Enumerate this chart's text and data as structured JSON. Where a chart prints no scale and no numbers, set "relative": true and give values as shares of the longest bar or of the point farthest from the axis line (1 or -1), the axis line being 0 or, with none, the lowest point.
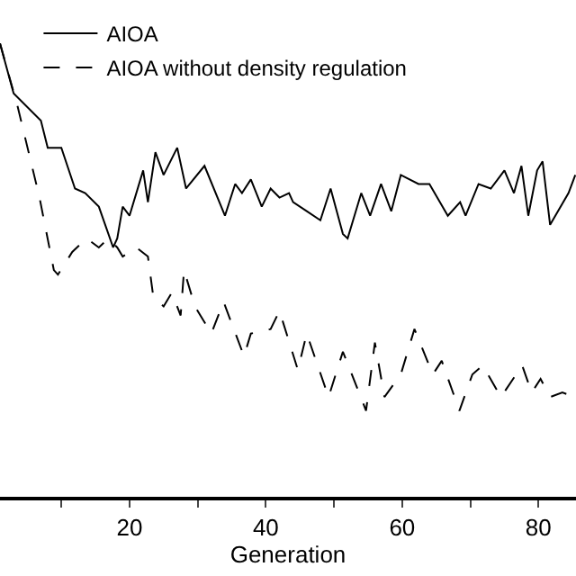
{
  "chart_data": {
    "type": "line",
    "xlabel": "Generation",
    "relative": true,
    "xlim": [
      1,
      85.5
    ],
    "xticks": [
      {
        "value": 10,
        "label": null
      },
      20,
      {
        "value": 30,
        "label": null
      },
      40,
      {
        "value": 50,
        "label": null
      },
      60,
      {
        "value": 70,
        "label": null
      },
      80
    ],
    "tick_labels": "x",
    "legend": "top left",
    "grid": false,
    "series": [
      {
        "name": "AIOA",
        "color": "#000000",
        "line_style": "solid",
        "x": [
          1,
          3,
          7,
          8,
          10,
          12,
          13.5,
          15.5,
          17.6,
          18.2,
          19,
          20,
          22,
          22.7,
          23.8,
          25,
          27,
          28.3,
          31,
          34,
          35.5,
          36.5,
          37.8,
          39.4,
          40.7,
          42,
          43.4,
          44,
          46,
          48,
          49.5,
          51.3,
          52,
          54,
          55.3,
          56.9,
          58.4,
          59.8,
          62.4,
          64,
          66.7,
          68.5,
          69.3,
          71.2,
          73,
          75,
          76.4,
          77.5,
          78.5,
          79.8,
          80.6,
          81.7,
          84.4,
          85.4
        ],
        "values": [
          1.0,
          0.89,
          0.83,
          0.77,
          0.77,
          0.68,
          0.67,
          0.64,
          0.55,
          0.57,
          0.64,
          0.62,
          0.72,
          0.65,
          0.76,
          0.71,
          0.77,
          0.68,
          0.73,
          0.62,
          0.69,
          0.67,
          0.7,
          0.64,
          0.68,
          0.66,
          0.67,
          0.65,
          0.63,
          0.61,
          0.68,
          0.58,
          0.57,
          0.67,
          0.62,
          0.69,
          0.63,
          0.71,
          0.69,
          0.69,
          0.62,
          0.65,
          0.62,
          0.69,
          0.68,
          0.72,
          0.67,
          0.73,
          0.62,
          0.72,
          0.74,
          0.6,
          0.67,
          0.71
        ]
      },
      {
        "name": "AIOA without density regulation",
        "color": "#000000",
        "line_style": "dashed",
        "x": [
          1,
          3.6,
          6.8,
          8.9,
          9.5,
          11.6,
          13.7,
          15.5,
          16.9,
          18.2,
          19,
          21,
          22.7,
          23.5,
          25,
          26.2,
          27.5,
          28,
          29.6,
          32,
          33.8,
          36.8,
          37.8,
          40.7,
          42,
          44.7,
          46,
          49.2,
          51.3,
          53.4,
          54.7,
          56,
          57.4,
          59.8,
          61.8,
          64.5,
          65.8,
          68.4,
          70.3,
          71.8,
          74.5,
          77.6,
          79,
          80.3,
          81.7,
          83.5,
          85.4
        ],
        "values": [
          1.0,
          0.86,
          0.66,
          0.5,
          0.49,
          0.54,
          0.57,
          0.55,
          0.57,
          0.55,
          0.53,
          0.55,
          0.53,
          0.44,
          0.42,
          0.45,
          0.4,
          0.5,
          0.42,
          0.36,
          0.43,
          0.31,
          0.36,
          0.37,
          0.41,
          0.28,
          0.36,
          0.22,
          0.32,
          0.24,
          0.19,
          0.34,
          0.22,
          0.27,
          0.37,
          0.27,
          0.3,
          0.19,
          0.27,
          0.29,
          0.22,
          0.29,
          0.23,
          0.26,
          0.22,
          0.23,
          0.22
        ]
      }
    ]
  }
}
